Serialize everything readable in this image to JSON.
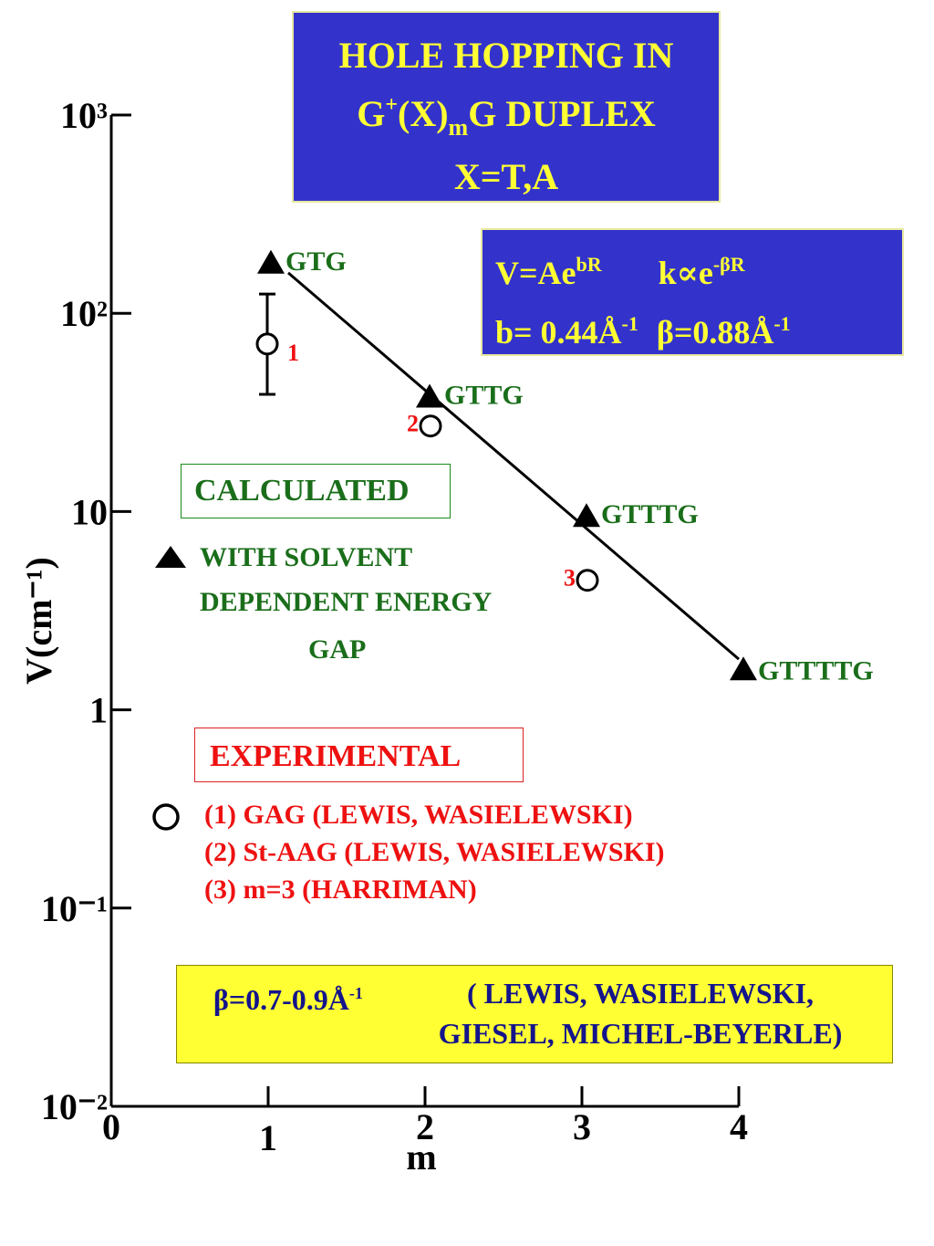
{
  "title_box": {
    "line1": "HOLE HOPPING IN",
    "line2_pre": "G",
    "line2_sup": "+",
    "line2_mid": "(X)",
    "line2_sub": "m",
    "line2_post": "G  DUPLEX",
    "line3": "X=T,A"
  },
  "formula_box": {
    "v_base": "V=Ae",
    "v_exp": "bR",
    "k_base": "k∝e",
    "k_exp": "-βR",
    "b_text": "b= 0.44Å",
    "b_exp": "-1",
    "beta_text": "β=0.88Å",
    "beta_exp": "-1"
  },
  "legend": {
    "calculated_label": "CALCULATED",
    "calculated_desc": [
      "WITH SOLVENT",
      "DEPENDENT ENERGY",
      "GAP"
    ],
    "experimental_label": "EXPERIMENTAL",
    "experimental_refs": [
      "(1)  GAG (LEWIS, WASIELEWSKI)",
      "(2)  St-AAG (LEWIS, WASIELEWSKI)",
      "(3)  m=3 (HARRIMAN)"
    ]
  },
  "reference_box": {
    "beta_text": "β=0.7-0.9Å",
    "beta_exp": "-1",
    "line1": "( LEWIS, WASIELEWSKI,",
    "line2": "GIESEL, MICHEL-BEYERLE)"
  },
  "chart_data": {
    "type": "scatter",
    "xlabel": "m",
    "ylabel": "V(cm⁻¹)",
    "xlim": [
      0,
      4
    ],
    "ylim": [
      0.01,
      1000
    ],
    "yscale": "log",
    "x_ticks": [
      "0",
      "1",
      "2",
      "3",
      "4"
    ],
    "y_ticks": [
      "10⁻²",
      "10⁻¹",
      "1",
      "10",
      "10²",
      "10³"
    ],
    "series": [
      {
        "name": "CALCULATED",
        "marker": "triangle",
        "color": "#000000",
        "points": [
          {
            "x": 1,
            "y": 180,
            "label": "GTG"
          },
          {
            "x": 2,
            "y": 38,
            "label": "GTTG"
          },
          {
            "x": 3,
            "y": 9.5,
            "label": "GTTTG"
          },
          {
            "x": 4,
            "y": 1.6,
            "label": "GTTTTG"
          }
        ]
      },
      {
        "name": "EXPERIMENTAL",
        "marker": "circle",
        "color": "#000000",
        "points": [
          {
            "x": 1,
            "y": 70,
            "label": "1",
            "err_low": 39,
            "err_high": 125
          },
          {
            "x": 2,
            "y": 27,
            "label": "2"
          },
          {
            "x": 3,
            "y": 4.5,
            "label": "3"
          }
        ]
      }
    ],
    "fit_line": {
      "x": [
        1,
        4
      ],
      "y": [
        160,
        1.8
      ]
    }
  }
}
